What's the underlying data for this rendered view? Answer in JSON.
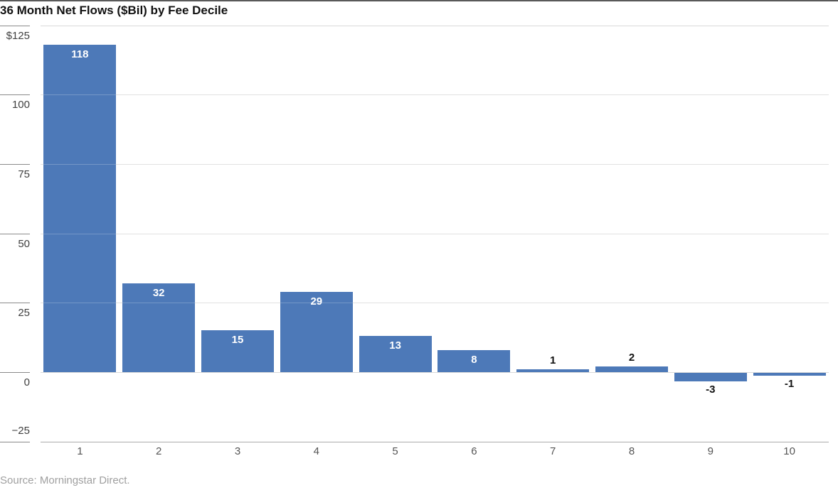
{
  "chart": {
    "title": "36 Month Net Flows ($Bil) by Fee Decile",
    "source": "Source: Morningstar Direct."
  },
  "chart_data": {
    "type": "bar",
    "title": "36 Month Net Flows ($Bil) by Fee Decile",
    "categories": [
      "1",
      "2",
      "3",
      "4",
      "5",
      "6",
      "7",
      "8",
      "9",
      "10"
    ],
    "values": [
      118,
      32,
      15,
      29,
      13,
      8,
      1,
      2,
      -3,
      -1
    ],
    "bar_labels": [
      "118",
      "32",
      "15",
      "29",
      "13",
      "8",
      "1",
      "2",
      "-3",
      "-1"
    ],
    "xlabel": "",
    "ylabel": "",
    "ylim": [
      -25,
      125
    ],
    "y_ticks": [
      {
        "value": 125,
        "label": "$125"
      },
      {
        "value": 100,
        "label": "100"
      },
      {
        "value": 75,
        "label": "75"
      },
      {
        "value": 50,
        "label": "50"
      },
      {
        "value": 25,
        "label": "25"
      },
      {
        "value": 0,
        "label": "0"
      },
      {
        "value": -25,
        "label": "−25"
      }
    ],
    "grid": true,
    "legend": false,
    "source": "Source: Morningstar Direct.",
    "colors": {
      "bar": "#4d79b8",
      "grid": "#d9d9d9",
      "baseline": "#ababab",
      "tick": "#8a8a8a",
      "axis_text": "#404040",
      "x_axis_text": "#555555",
      "bar_label_inside": "#ffffff",
      "bar_label_outside": "#111111",
      "title_text": "#111111",
      "source_text": "#9f9f9f",
      "top_rule": "#595959"
    }
  }
}
